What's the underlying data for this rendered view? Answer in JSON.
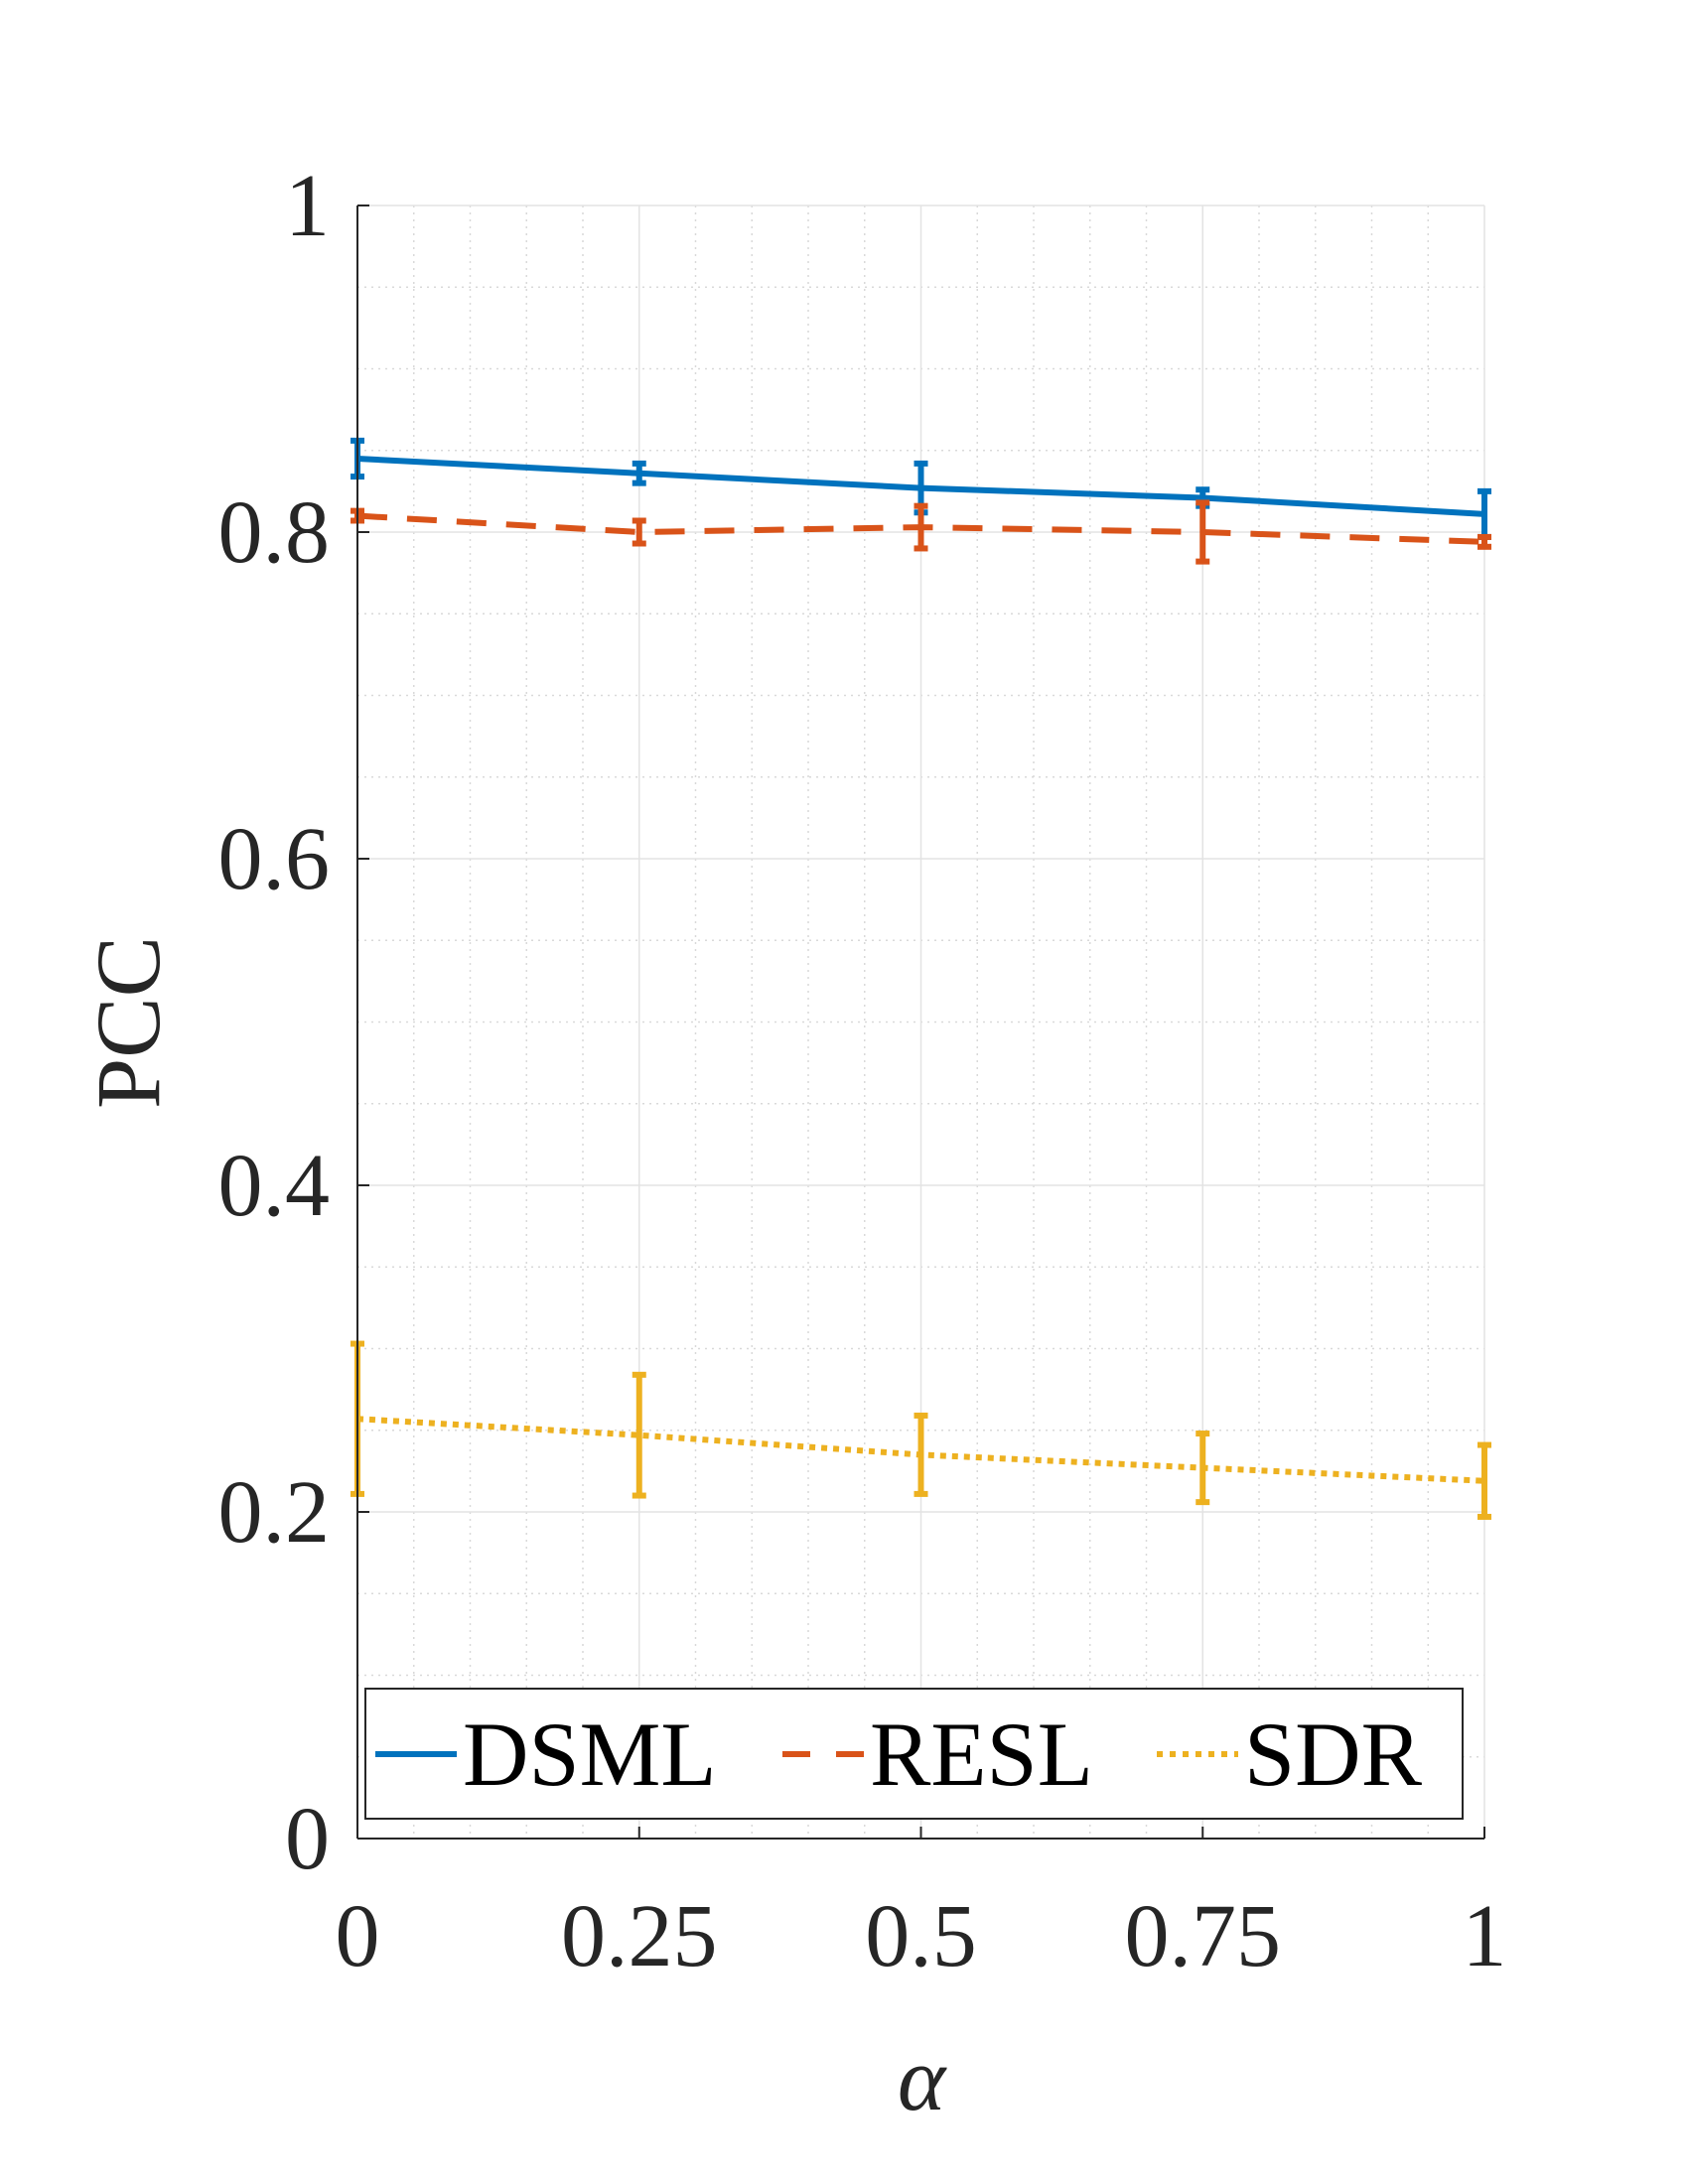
{
  "chart_data": {
    "type": "line",
    "x": [
      0,
      0.25,
      0.5,
      0.75,
      1
    ],
    "xlabel": "α",
    "ylabel": "PCC",
    "xlim": [
      0,
      1
    ],
    "ylim": [
      0,
      1
    ],
    "x_ticks": [
      0,
      0.25,
      0.5,
      0.75,
      1
    ],
    "x_tick_labels": [
      "0",
      "0.25",
      "0.5",
      "0.75",
      "1"
    ],
    "y_ticks": [
      0,
      0.2,
      0.4,
      0.6,
      0.8,
      1
    ],
    "y_tick_labels": [
      "0",
      "0.2",
      "0.4",
      "0.6",
      "0.8",
      "1"
    ],
    "grid": true,
    "minor_grid": true,
    "legend_position": "bottom",
    "legend_orientation": "horizontal",
    "series": [
      {
        "name": "DSML",
        "color": "#0072BD",
        "line_style": "solid",
        "values": [
          0.845,
          0.836,
          0.827,
          0.821,
          0.811
        ],
        "errors": [
          0.011,
          0.006,
          0.015,
          0.005,
          0.014
        ]
      },
      {
        "name": "RESL",
        "color": "#D95319",
        "line_style": "dashed",
        "values": [
          0.81,
          0.8,
          0.803,
          0.8,
          0.794
        ],
        "errors": [
          0.003,
          0.007,
          0.013,
          0.018,
          0.003
        ]
      },
      {
        "name": "SDR",
        "color": "#EDB120",
        "line_style": "dotted",
        "values": [
          0.257,
          0.247,
          0.235,
          0.227,
          0.219
        ],
        "errors": [
          0.046,
          0.037,
          0.024,
          0.021,
          0.022
        ]
      }
    ]
  }
}
